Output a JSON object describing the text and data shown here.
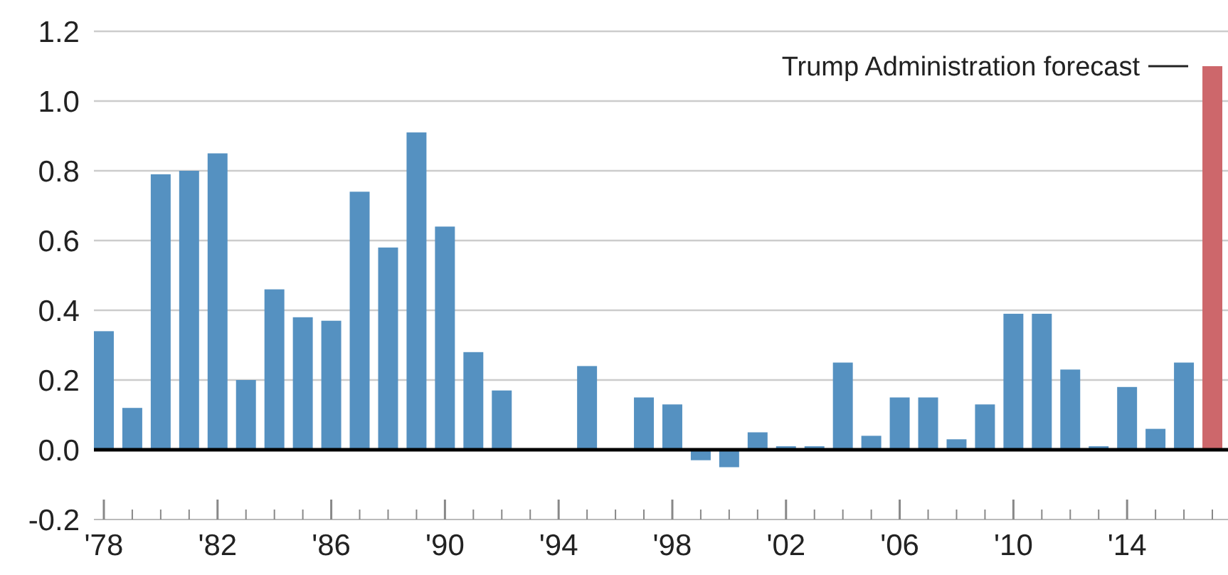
{
  "chart_data": {
    "type": "bar",
    "categories": [
      "'78",
      null,
      null,
      null,
      "'82",
      null,
      null,
      null,
      "'86",
      null,
      null,
      null,
      "'90",
      null,
      null,
      null,
      "'94",
      null,
      null,
      null,
      "'98",
      null,
      null,
      null,
      "'02",
      null,
      null,
      null,
      "'06",
      null,
      null,
      null,
      "'10",
      null,
      null,
      null,
      "'14",
      null,
      null,
      null
    ],
    "values": [
      0.34,
      0.12,
      0.79,
      0.8,
      0.85,
      0.2,
      0.46,
      0.38,
      0.37,
      0.74,
      0.58,
      0.91,
      0.64,
      0.28,
      0.17,
      0,
      0,
      0.24,
      0,
      0.15,
      0.13,
      -0.03,
      -0.05,
      0.05,
      0.01,
      0.01,
      0.25,
      0.04,
      0.15,
      0.15,
      0.03,
      0.13,
      0.39,
      0.39,
      0.23,
      0.01,
      0.18,
      0.06,
      0.25,
      1.1
    ],
    "colors": [
      "#5591c1",
      "#5591c1",
      "#5591c1",
      "#5591c1",
      "#5591c1",
      "#5591c1",
      "#5591c1",
      "#5591c1",
      "#5591c1",
      "#5591c1",
      "#5591c1",
      "#5591c1",
      "#5591c1",
      "#5591c1",
      "#5591c1",
      "#5591c1",
      "#5591c1",
      "#5591c1",
      "#5591c1",
      "#5591c1",
      "#5591c1",
      "#5591c1",
      "#5591c1",
      "#5591c1",
      "#5591c1",
      "#5591c1",
      "#5591c1",
      "#5591c1",
      "#5591c1",
      "#5591c1",
      "#5591c1",
      "#5591c1",
      "#5591c1",
      "#5591c1",
      "#5591c1",
      "#5591c1",
      "#5591c1",
      "#5591c1",
      "#5591c1",
      "#cd676b"
    ],
    "ylim": [
      -0.2,
      1.2
    ],
    "yticks": [
      {
        "value": -0.2,
        "label": "-0.2"
      },
      {
        "value": 0,
        "label": "0.0"
      },
      {
        "value": 0.2,
        "label": "0.2"
      },
      {
        "value": 0.4,
        "label": "0.4"
      },
      {
        "value": 0.6,
        "label": "0.6"
      },
      {
        "value": 0.8,
        "label": "0.8"
      },
      {
        "value": 1.0,
        "label": "1.0"
      },
      {
        "value": 1.2,
        "label": "1.2"
      }
    ],
    "grid": "y",
    "annotations": [
      "Trump Administration forecast"
    ]
  }
}
